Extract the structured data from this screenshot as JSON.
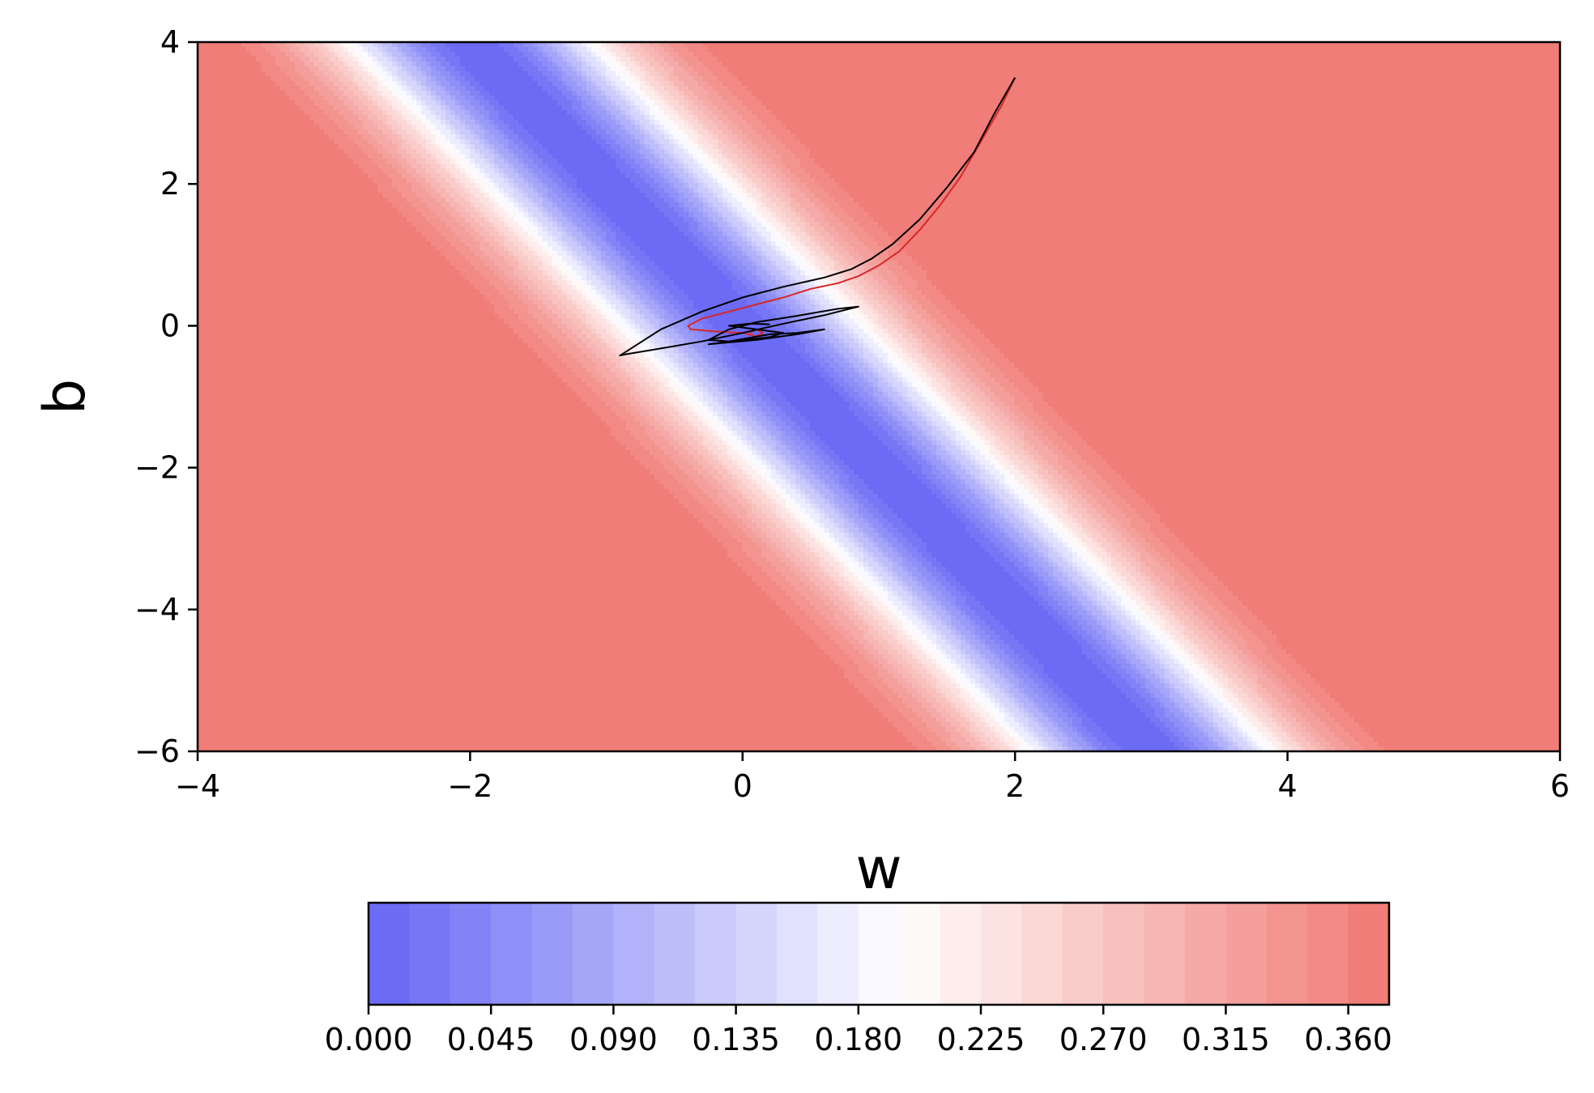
{
  "chart_data": {
    "type": "contour",
    "title": "",
    "xlabel": "w",
    "ylabel": "b",
    "xlim": [
      -4,
      6
    ],
    "ylim": [
      -6,
      4
    ],
    "x_ticks": [
      "−4",
      "−2",
      "0",
      "2",
      "4",
      "6"
    ],
    "x_tick_values": [
      -4,
      -2,
      0,
      2,
      4,
      6
    ],
    "y_ticks": [
      "−6",
      "−4",
      "−2",
      "0",
      "2",
      "4"
    ],
    "y_tick_values": [
      -6,
      -4,
      -2,
      0,
      2,
      4
    ],
    "colormap": "bwr",
    "colormap_colors": [
      "#6b6bf5",
      "#ffffff",
      "#ef726c"
    ],
    "levels": [
      0.0,
      0.015,
      0.03,
      0.045,
      0.06,
      0.075,
      0.09,
      0.105,
      0.12,
      0.135,
      0.15,
      0.165,
      0.18,
      0.195,
      0.21,
      0.225,
      0.24,
      0.255,
      0.27,
      0.285,
      0.3,
      0.315,
      0.33,
      0.345,
      0.36,
      0.375
    ],
    "colorbar_ticks": [
      "0.000",
      "0.045",
      "0.090",
      "0.135",
      "0.180",
      "0.225",
      "0.270",
      "0.315",
      "0.360"
    ],
    "colorbar_tick_values": [
      0.0,
      0.045,
      0.09,
      0.135,
      0.18,
      0.225,
      0.27,
      0.315,
      0.36
    ],
    "series": [
      {
        "name": "red trajectory",
        "color": "#d62728",
        "x": [
          2.0,
          1.9,
          1.75,
          1.6,
          1.45,
          1.3,
          1.15,
          1.0,
          0.85,
          0.7,
          0.5,
          0.3,
          0.1,
          -0.1,
          -0.3,
          -0.4,
          -0.38,
          -0.2,
          0.0,
          0.1,
          0.15,
          0.1,
          0.05
        ],
        "y": [
          3.5,
          3.1,
          2.6,
          2.1,
          1.7,
          1.35,
          1.05,
          0.85,
          0.7,
          0.6,
          0.52,
          0.4,
          0.3,
          0.2,
          0.1,
          0.0,
          -0.05,
          -0.08,
          -0.1,
          -0.15,
          -0.1,
          -0.05,
          -0.1
        ]
      },
      {
        "name": "black trajectory",
        "color": "#000000",
        "x": [
          2.0,
          1.85,
          1.7,
          1.5,
          1.3,
          1.1,
          0.95,
          0.8,
          0.6,
          0.3,
          0.0,
          -0.3,
          -0.6,
          -0.9,
          -0.85,
          -0.6,
          -0.3,
          0.0,
          0.3,
          0.6,
          0.85,
          0.7,
          0.4,
          0.1,
          -0.1,
          -0.25,
          -0.1,
          0.2,
          0.4,
          0.6,
          0.4,
          0.1,
          -0.25,
          -0.1,
          0.2,
          0.3,
          0.1,
          -0.1,
          0.05,
          0.2
        ],
        "y": [
          3.5,
          3.0,
          2.45,
          1.95,
          1.5,
          1.15,
          0.95,
          0.8,
          0.68,
          0.55,
          0.4,
          0.2,
          -0.05,
          -0.42,
          -0.4,
          -0.32,
          -0.22,
          -0.1,
          0.03,
          0.15,
          0.27,
          0.24,
          0.14,
          0.05,
          -0.05,
          -0.2,
          -0.22,
          -0.12,
          -0.1,
          -0.05,
          -0.12,
          -0.2,
          -0.26,
          -0.22,
          -0.16,
          -0.1,
          -0.05,
          0.0,
          0.03,
          0.02
        ]
      }
    ]
  }
}
